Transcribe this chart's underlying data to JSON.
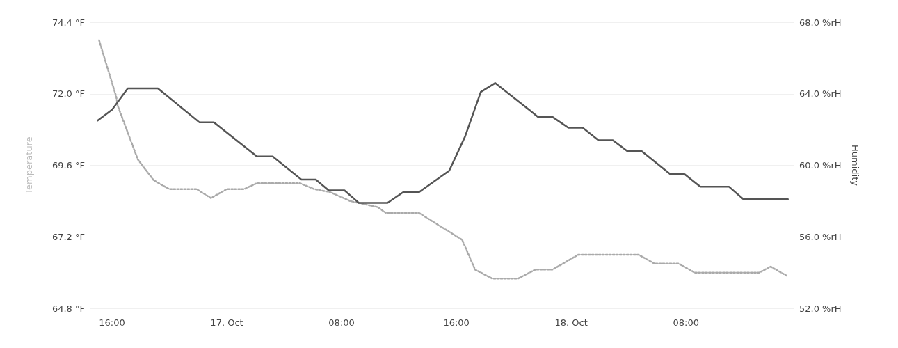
{
  "chart_data": {
    "type": "line",
    "ylabel": "Temperature",
    "y2label": "Humidity",
    "xlim": [
      "--10-16T14:30",
      "--10-18T15:30"
    ],
    "xticks": [
      {
        "value": "--10-16T16:00",
        "label": "16:00"
      },
      {
        "value": "--10-17T00:00",
        "label": "17. Oct"
      },
      {
        "value": "--10-17T08:00",
        "label": "08:00"
      },
      {
        "value": "--10-17T16:00",
        "label": "16:00"
      },
      {
        "value": "--10-18T00:00",
        "label": "18. Oct"
      },
      {
        "value": "--10-18T08:00",
        "label": "08:00"
      }
    ],
    "ylim": [
      64.8,
      74.4
    ],
    "yticks": [
      {
        "value": 64.8,
        "label": "64.8 °F"
      },
      {
        "value": 67.2,
        "label": "67.2 °F"
      },
      {
        "value": 69.6,
        "label": "69.6 °F"
      },
      {
        "value": 72.0,
        "label": "72.0 °F"
      },
      {
        "value": 74.4,
        "label": "74.4 °F"
      }
    ],
    "y2lim": [
      52,
      68
    ],
    "y2ticks": [
      {
        "value": 52,
        "label": "52.0 %rH"
      },
      {
        "value": 56,
        "label": "56.0 %rH"
      },
      {
        "value": 60,
        "label": "60.0 %rH"
      },
      {
        "value": 64,
        "label": "64.0 %rH"
      },
      {
        "value": 68,
        "label": "68.0 %rH"
      }
    ],
    "grid": "y",
    "marker": "none",
    "series": [
      {
        "color": "#aaaaaa",
        "line_style": "dotted",
        "x": [
          "--10-16T15:06",
          "--10-16T16:18",
          "--10-16T16:24",
          "--10-16T17:48",
          "--10-16T18:54",
          "--10-16T20:00",
          "--10-16T21:54",
          "--10-16T22:54",
          "--10-17T00:00",
          "--10-17T01:12",
          "--10-17T02:06",
          "--10-17T05:06",
          "--10-17T06:06",
          "--10-17T07:12",
          "--10-17T08:36",
          "--10-17T10:30",
          "--10-17T11:06",
          "--10-17T13:24",
          "--10-17T16:24",
          "--10-17T17:18",
          "--10-17T18:30",
          "--10-17T20:18",
          "--10-17T21:30",
          "--10-17T22:42",
          "--10-18T00:30",
          "--10-18T04:42",
          "--10-18T05:48",
          "--10-18T07:30",
          "--10-18T08:36",
          "--10-18T13:06",
          "--10-18T13:54",
          "--10-18T15:00"
        ],
        "values": [
          73.8,
          71.9,
          71.6,
          69.8,
          69.1,
          68.8,
          68.8,
          68.5,
          68.8,
          68.8,
          69.0,
          69.0,
          68.8,
          68.7,
          68.4,
          68.2,
          68.0,
          68.0,
          67.1,
          66.1,
          65.8,
          65.8,
          66.1,
          66.1,
          66.6,
          66.6,
          66.3,
          66.3,
          66.0,
          66.0,
          66.2,
          65.9
        ]
      },
      {
        "color": "#555555",
        "line_style": "solid",
        "axis": "y2",
        "x": [
          "--10-16T15:00",
          "--10-16T16:00",
          "--10-16T17:06",
          "--10-16T19:12",
          "--10-16T22:06",
          "--10-16T23:06",
          "--10-17T02:06",
          "--10-17T03:12",
          "--10-17T05:12",
          "--10-17T06:12",
          "--10-17T07:06",
          "--10-17T08:12",
          "--10-17T09:12",
          "--10-17T11:12",
          "--10-17T12:18",
          "--10-17T13:24",
          "--10-17T15:30",
          "--10-17T16:36",
          "--10-17T17:42",
          "--10-17T18:42",
          "--10-17T21:42",
          "--10-17T22:42",
          "--10-17T23:48",
          "--10-18T00:48",
          "--10-18T01:54",
          "--10-18T02:54",
          "--10-18T03:54",
          "--10-18T04:54",
          "--10-18T06:54",
          "--10-18T07:54",
          "--10-18T09:00",
          "--10-18T11:00",
          "--10-18T12:00",
          "--10-18T15:06"
        ],
        "values": [
          62.5,
          63.1,
          64.3,
          64.3,
          62.4,
          62.4,
          60.5,
          60.5,
          59.2,
          59.2,
          58.6,
          58.6,
          57.9,
          57.9,
          58.5,
          58.5,
          59.7,
          61.6,
          64.1,
          64.6,
          62.7,
          62.7,
          62.1,
          62.1,
          61.4,
          61.4,
          60.8,
          60.8,
          59.5,
          59.5,
          58.8,
          58.8,
          58.1,
          58.1
        ]
      }
    ]
  }
}
